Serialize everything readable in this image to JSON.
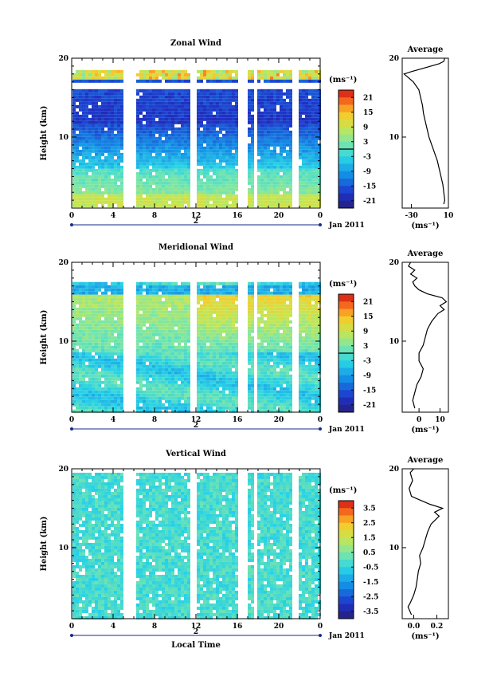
{
  "chart_data": [
    {
      "type": "heatmap",
      "title": "Zonal Wind",
      "ylabel": "Height (km)",
      "xlabel": "",
      "x_ticks": [
        "0",
        "4",
        "8",
        "12",
        "16",
        "20",
        "0"
      ],
      "y_ticks": [
        "10",
        "20"
      ],
      "xlim": [
        0,
        24
      ],
      "ylim": [
        1,
        20
      ],
      "date_day": "2",
      "date_label": "Jan 2011",
      "colorbar": {
        "unit": "(ms⁻¹)",
        "ticks": [
          "21",
          "15",
          "9",
          "3",
          "-3",
          "-9",
          "-15",
          "-21"
        ],
        "range": [
          -24,
          24
        ],
        "zero_line": 0
      },
      "profile": {
        "title": "Average",
        "xlabel": "(ms⁻¹)",
        "x_ticks": [
          "-30",
          "10"
        ],
        "xlim": [
          -40,
          10
        ],
        "y_ticks": [
          "10",
          "20"
        ],
        "points": [
          [
            5,
            1.5
          ],
          [
            6,
            2
          ],
          [
            5,
            3
          ],
          [
            4,
            4
          ],
          [
            2,
            5
          ],
          [
            0,
            6
          ],
          [
            -2,
            7
          ],
          [
            -5,
            8
          ],
          [
            -8,
            9
          ],
          [
            -11,
            10
          ],
          [
            -13,
            11
          ],
          [
            -15,
            12
          ],
          [
            -17,
            13
          ],
          [
            -18,
            14
          ],
          [
            -20,
            15
          ],
          [
            -22,
            16
          ],
          [
            -25,
            16.5
          ],
          [
            -28,
            17
          ],
          [
            -33,
            17.5
          ],
          [
            -38,
            18
          ],
          [
            -30,
            18.3
          ],
          [
            -15,
            18.8
          ],
          [
            0,
            19.3
          ],
          [
            5,
            19.6
          ],
          [
            6,
            20
          ]
        ]
      },
      "gaps_hours": [
        [
          5,
          6.1
        ],
        [
          11.2,
          12
        ],
        [
          16,
          16.7
        ],
        [
          17.4,
          17.9
        ],
        [
          21.3,
          21.9
        ]
      ],
      "field_top_km": 18.5
    },
    {
      "type": "heatmap",
      "title": "Meridional Wind",
      "ylabel": "Height (km)",
      "xlabel": "",
      "x_ticks": [
        "0",
        "4",
        "8",
        "12",
        "16",
        "20",
        "0"
      ],
      "y_ticks": [
        "10",
        "20"
      ],
      "xlim": [
        0,
        24
      ],
      "ylim": [
        1,
        20
      ],
      "date_day": "2",
      "date_label": "Jan 2011",
      "colorbar": {
        "unit": "(ms⁻¹)",
        "ticks": [
          "21",
          "15",
          "9",
          "3",
          "-3",
          "-9",
          "-15",
          "-21"
        ],
        "range": [
          -24,
          24
        ],
        "zero_line": 0
      },
      "profile": {
        "title": "Average",
        "xlabel": "(ms⁻¹)",
        "x_ticks": [
          "0",
          "10"
        ],
        "xlim": [
          -8,
          14
        ],
        "y_ticks": [
          "10",
          "20"
        ],
        "points": [
          [
            -2,
            1.5
          ],
          [
            -3,
            2.5
          ],
          [
            -2,
            3.5
          ],
          [
            -1,
            4.5
          ],
          [
            1,
            5.5
          ],
          [
            2,
            6.5
          ],
          [
            0,
            7.5
          ],
          [
            0,
            8.5
          ],
          [
            2,
            9.5
          ],
          [
            3,
            10.5
          ],
          [
            4,
            11.5
          ],
          [
            6,
            12.5
          ],
          [
            9,
            13.5
          ],
          [
            12,
            14
          ],
          [
            10,
            14.5
          ],
          [
            13,
            15
          ],
          [
            11,
            15.5
          ],
          [
            4,
            16
          ],
          [
            0,
            16.5
          ],
          [
            -2,
            17
          ],
          [
            -3,
            17.5
          ],
          [
            -1,
            18
          ],
          [
            -4,
            18.5
          ],
          [
            -2,
            19
          ],
          [
            -5,
            19.5
          ],
          [
            -4,
            20
          ]
        ]
      },
      "gaps_hours": [
        [
          5,
          6.1
        ],
        [
          11.2,
          12
        ],
        [
          16,
          16.7
        ],
        [
          17.4,
          17.9
        ],
        [
          21.3,
          21.9
        ]
      ],
      "field_top_km": 17.5
    },
    {
      "type": "heatmap",
      "title": "Vertical Wind",
      "ylabel": "Height (km)",
      "xlabel": "Local Time",
      "x_ticks": [
        "0",
        "4",
        "8",
        "12",
        "16",
        "20",
        "0"
      ],
      "y_ticks": [
        "10",
        "20"
      ],
      "xlim": [
        0,
        24
      ],
      "ylim": [
        1,
        20
      ],
      "date_day": "2",
      "date_label": "Jan 2011",
      "colorbar": {
        "unit": "(ms⁻¹)",
        "ticks": [
          "3.5",
          "2.5",
          "1.5",
          "0.5",
          "-0.5",
          "-1.5",
          "-2.5",
          "-3.5"
        ],
        "range": [
          -4,
          4
        ],
        "zero_line": null
      },
      "profile": {
        "title": "Average",
        "xlabel": "(ms⁻¹)",
        "x_ticks": [
          "0.0",
          "0.2"
        ],
        "xlim": [
          -0.1,
          0.3
        ],
        "y_ticks": [
          "10",
          "20"
        ],
        "points": [
          [
            -0.02,
            1.5
          ],
          [
            -0.05,
            2.5
          ],
          [
            -0.03,
            3
          ],
          [
            0.0,
            4
          ],
          [
            0.02,
            5
          ],
          [
            0.03,
            6
          ],
          [
            0.04,
            7
          ],
          [
            0.06,
            8
          ],
          [
            0.05,
            9
          ],
          [
            0.08,
            10
          ],
          [
            0.1,
            11
          ],
          [
            0.12,
            12
          ],
          [
            0.15,
            13
          ],
          [
            0.22,
            14
          ],
          [
            0.18,
            14.5
          ],
          [
            0.25,
            15
          ],
          [
            0.14,
            15.5
          ],
          [
            0.06,
            16
          ],
          [
            -0.02,
            16.5
          ],
          [
            -0.04,
            17.5
          ],
          [
            -0.01,
            18.5
          ],
          [
            -0.03,
            19.5
          ],
          [
            0.0,
            20
          ]
        ]
      },
      "gaps_hours": [
        [
          5,
          6.1
        ],
        [
          11.2,
          12
        ],
        [
          16,
          16.7
        ],
        [
          17.4,
          17.9
        ],
        [
          21.3,
          21.9
        ]
      ],
      "field_top_km": 19.5
    }
  ]
}
